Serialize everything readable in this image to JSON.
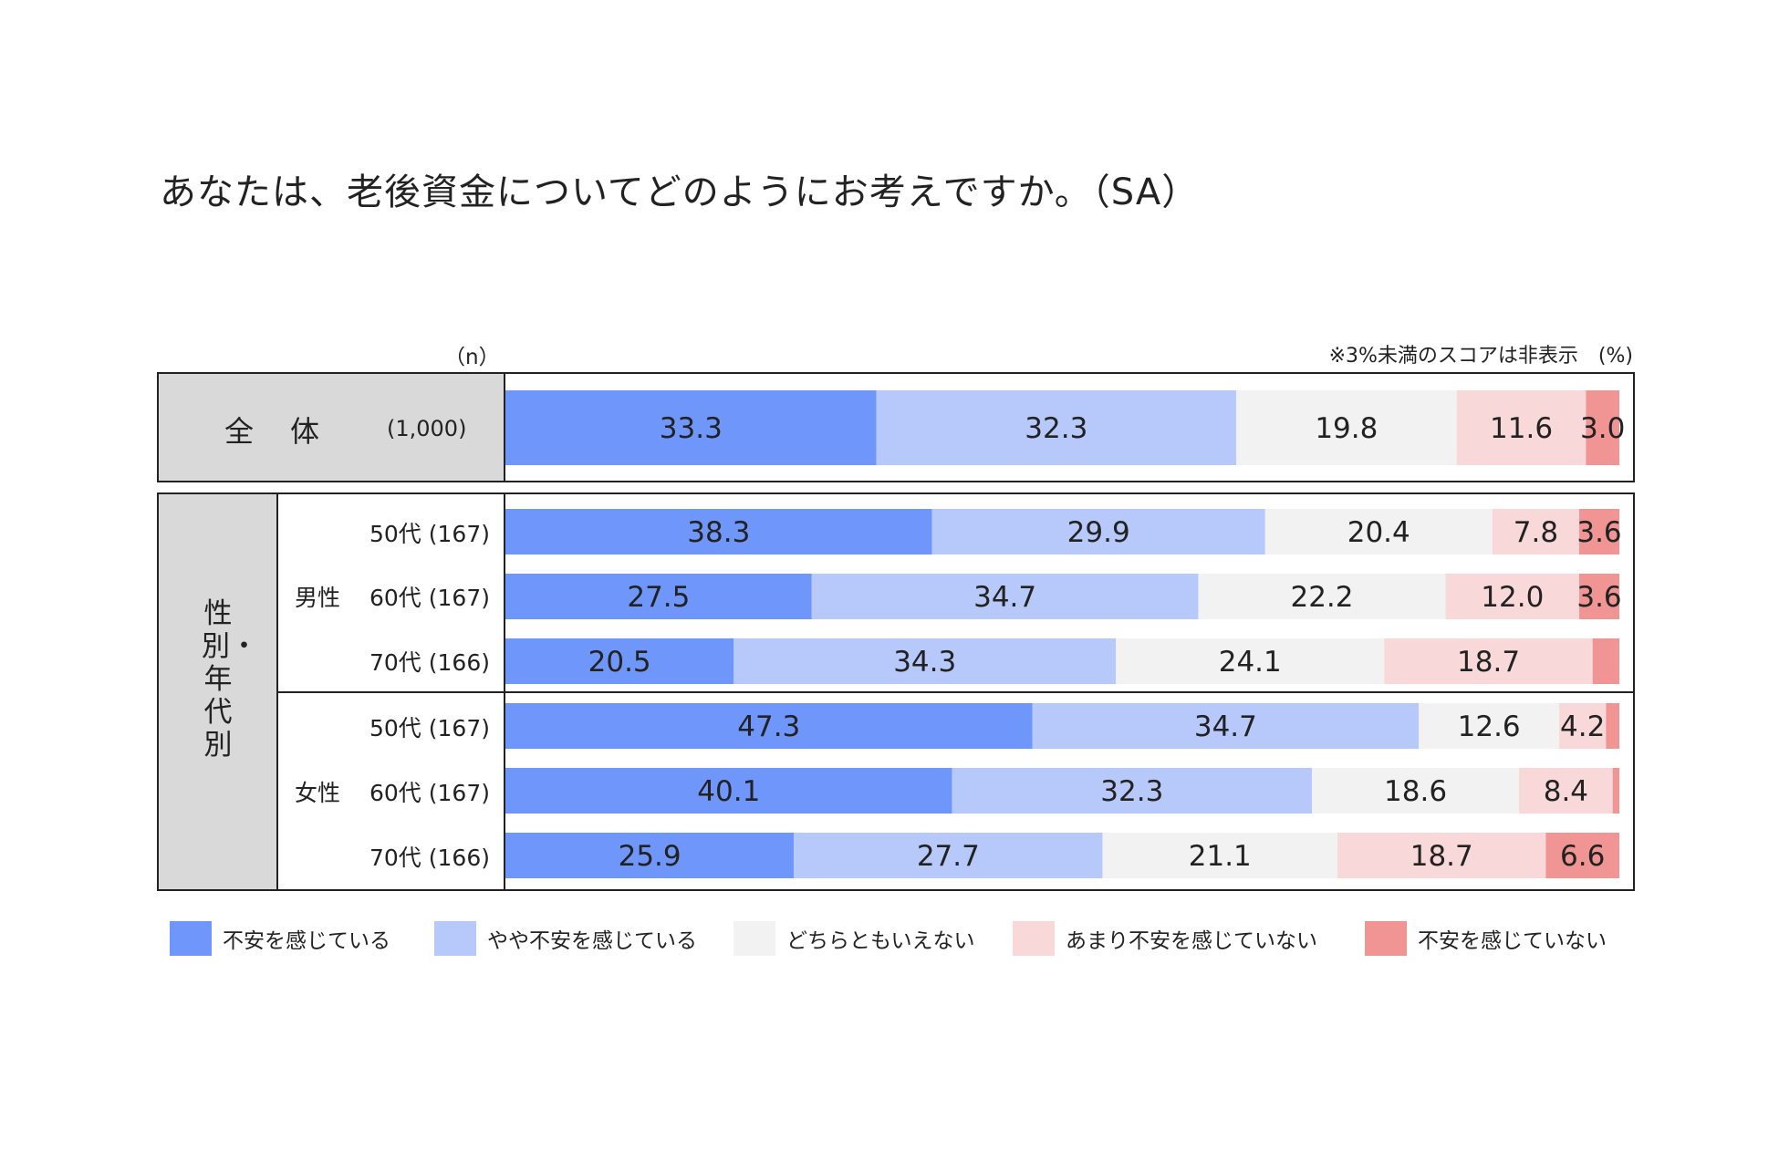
{
  "title": "あなたは、老後資金についてどのようにお考えですか。（SA）",
  "n_label": "（n）",
  "note": "※3%未満のスコアは非表示　(%)",
  "overall": {
    "label": "全　体",
    "n": "(1,000)"
  },
  "group_label": "性別・年代別",
  "genders": [
    "男性",
    "女性"
  ],
  "chart_data": {
    "type": "stacked-bar-horizontal",
    "title": "あなたは、老後資金についてどのようにお考えですか。（SA）",
    "unit": "%",
    "legend_position": "bottom",
    "series": [
      {
        "name": "不安を感じている",
        "color": "#6f96fb"
      },
      {
        "name": "やや不安を感じている",
        "color": "#b7c9fb"
      },
      {
        "name": "どちらともいえない",
        "color": "#f2f2f2"
      },
      {
        "name": "あまり不安を感じていない",
        "color": "#f8d8d8"
      },
      {
        "name": "不安を感じていない",
        "color": "#f09494"
      }
    ],
    "rows": [
      {
        "id": "overall",
        "label": "全体",
        "n": "(1,000)",
        "values": [
          33.3,
          32.3,
          19.8,
          11.6,
          3.0
        ]
      },
      {
        "id": "m50",
        "gender": "男性",
        "label": "50代",
        "n": "(167)",
        "values": [
          38.3,
          29.9,
          20.4,
          7.8,
          3.6
        ]
      },
      {
        "id": "m60",
        "gender": "男性",
        "label": "60代",
        "n": "(167)",
        "values": [
          27.5,
          34.7,
          22.2,
          12.0,
          3.6
        ]
      },
      {
        "id": "m70",
        "gender": "男性",
        "label": "70代",
        "n": "(166)",
        "values": [
          20.5,
          34.3,
          24.1,
          18.7,
          2.4
        ]
      },
      {
        "id": "f50",
        "gender": "女性",
        "label": "50代",
        "n": "(167)",
        "values": [
          47.3,
          34.7,
          12.6,
          4.2,
          1.2
        ]
      },
      {
        "id": "f60",
        "gender": "女性",
        "label": "60代",
        "n": "(167)",
        "values": [
          40.1,
          32.3,
          18.6,
          8.4,
          0.6
        ]
      },
      {
        "id": "f70",
        "gender": "女性",
        "label": "70代",
        "n": "(166)",
        "values": [
          25.9,
          27.7,
          21.1,
          18.7,
          6.6
        ]
      }
    ],
    "hide_label_below": 3.0
  }
}
